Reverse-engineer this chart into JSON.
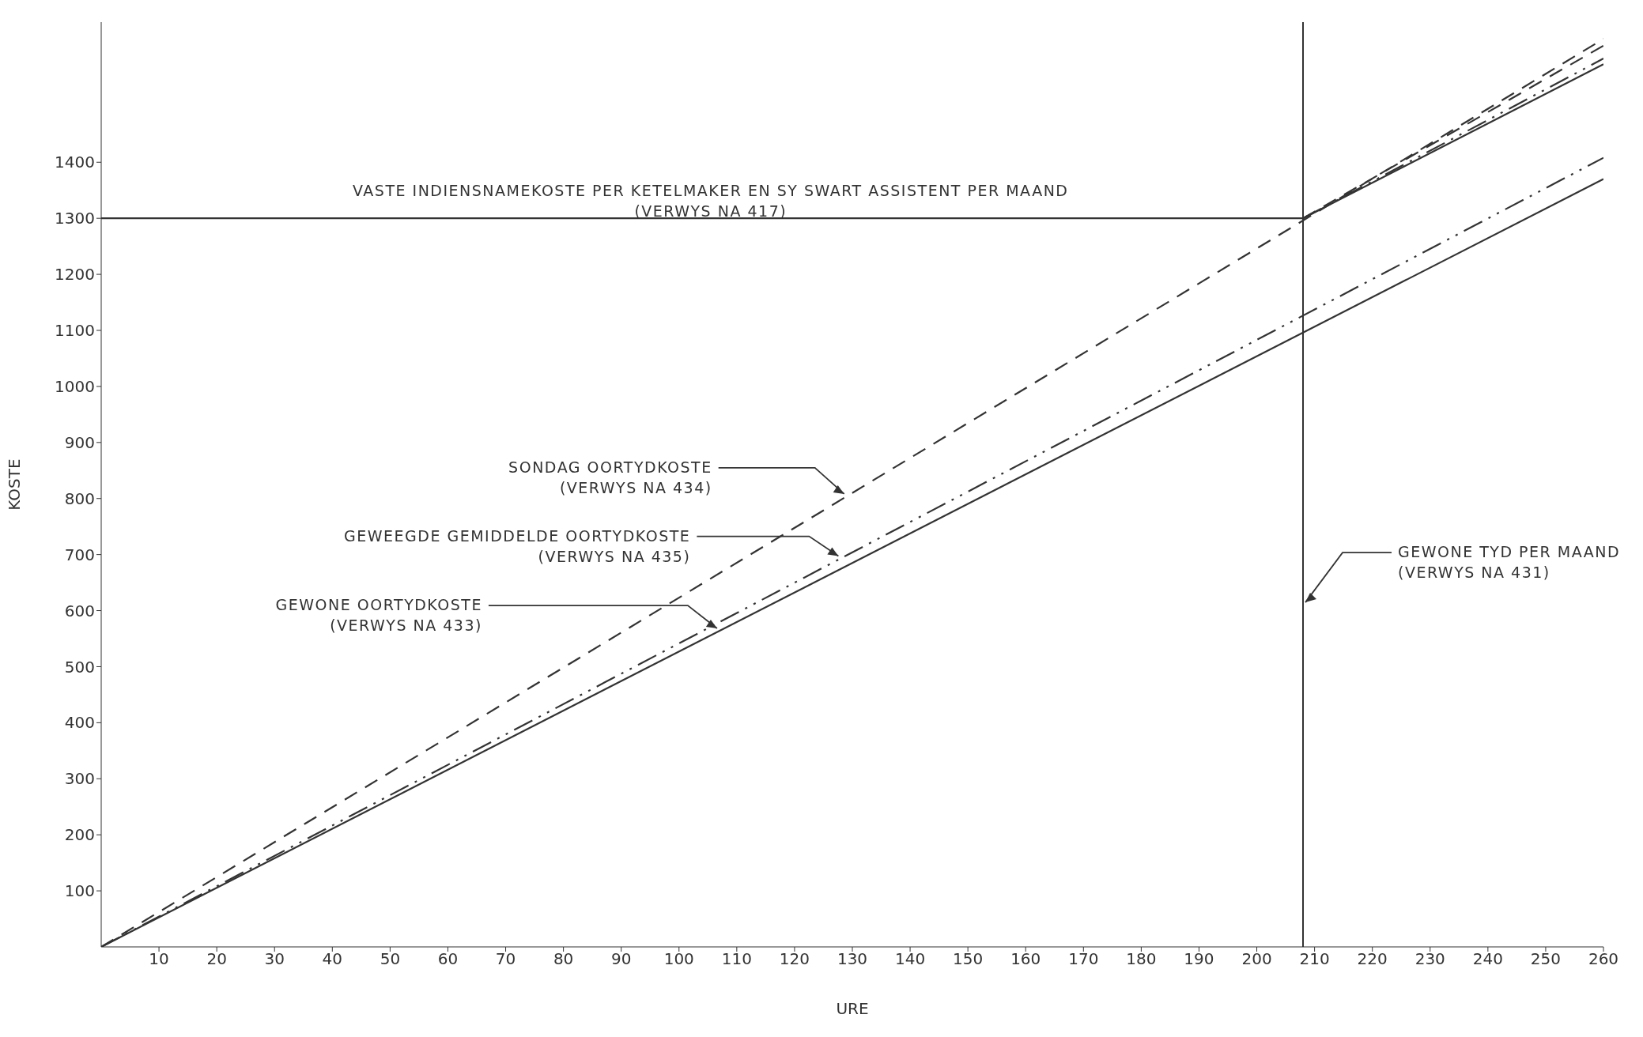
{
  "chart_data": {
    "type": "line",
    "xlabel": "URE",
    "ylabel": "KOSTE",
    "xlim": [
      0,
      260
    ],
    "xticks": [
      10,
      20,
      30,
      40,
      50,
      60,
      70,
      80,
      90,
      100,
      110,
      120,
      130,
      140,
      150,
      160,
      170,
      180,
      190,
      200,
      210,
      220,
      230,
      240,
      250,
      260
    ],
    "ylim": [
      0,
      1650
    ],
    "yticks": [
      100,
      200,
      300,
      400,
      500,
      600,
      700,
      800,
      900,
      1000,
      1100,
      1200,
      1300,
      1400
    ],
    "marker": "none",
    "series": [
      {
        "color": "#333333",
        "x": [
          0,
          208,
          260
        ],
        "values": [
          1300,
          1300,
          1575
        ],
        "line_style": "solid"
      },
      {
        "color": "#333333",
        "x": [
          208,
          260
        ],
        "values": [
          1300,
          1585
        ],
        "line_style": "dashdot"
      },
      {
        "color": "#333333",
        "x": [
          208,
          260
        ],
        "values": [
          1300,
          1608
        ],
        "line_style": "dashed"
      },
      {
        "color": "#333333",
        "x": [
          0,
          260
        ],
        "values": [
          0,
          1620
        ],
        "line_style": "dashed"
      },
      {
        "color": "#333333",
        "x": [
          0,
          260
        ],
        "values": [
          0,
          1408
        ],
        "line_style": "dashdot"
      },
      {
        "color": "#333333",
        "x": [
          0,
          260
        ],
        "values": [
          0,
          1370
        ],
        "line_style": "solid"
      }
    ],
    "ref_lines": [
      {
        "axis": "x",
        "value": 208,
        "label": "GEWONE TYD PER MAAND\n(VERWYS NA 431)",
        "color": "#333333"
      }
    ],
    "annotations": [
      {
        "text": "VASTE INDIENSNAMEKOSTE PER KETELMAKER EN SY SWART ASSISTENT PER MAAND\n(VERWYS NA 417)",
        "x": 100,
        "y": 1300
      },
      {
        "text": "SONDAG OORTYDKOSTE\n(VERWYS NA 434)",
        "x": 129,
        "y": 804
      },
      {
        "text": "GEWEEGDE GEMIDDELDE OORTYDKOSTE\n(VERWYS NA 435)",
        "x": 128,
        "y": 693
      },
      {
        "text": "GEWONE OORTYDKOSTE\n(VERWYS NA 433)",
        "x": 107,
        "y": 564
      }
    ]
  }
}
